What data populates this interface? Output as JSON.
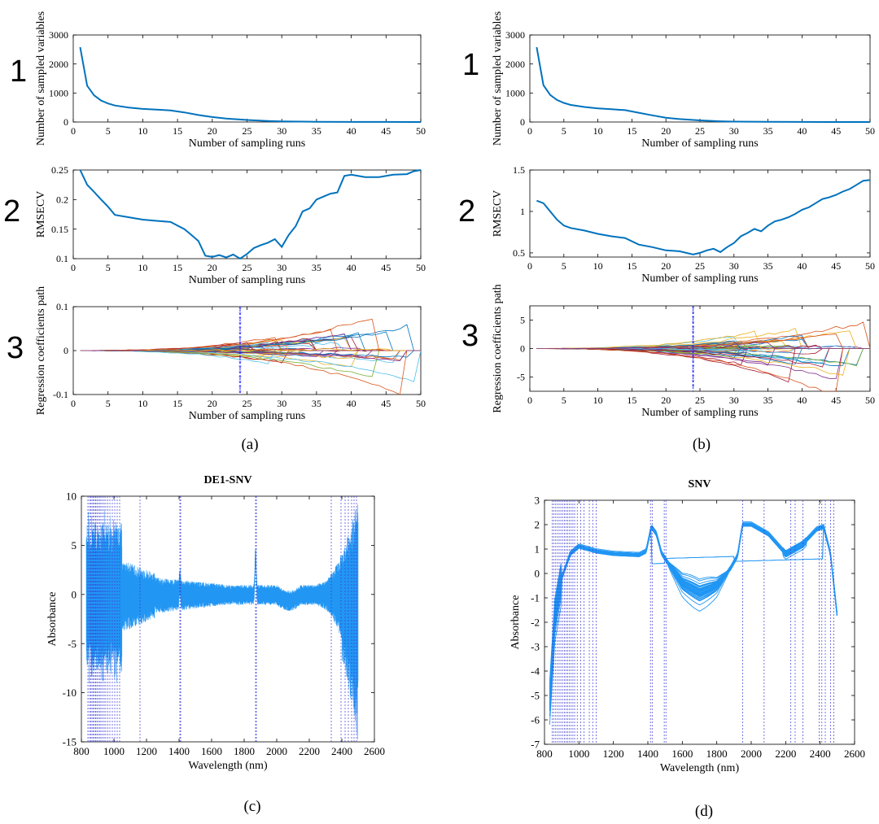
{
  "panel_labels": [
    "(a)",
    "(b)",
    "(c)",
    "(d)"
  ],
  "row_numbers": [
    "1",
    "2",
    "3"
  ],
  "colors": {
    "cars_line": "#0072BD",
    "spectra": "#2196F3",
    "selected_wavelength": "#3b3bd9",
    "star_marker": "#1a1aff",
    "axis": "#000000"
  },
  "coef_palette": [
    "#0072BD",
    "#D95319",
    "#EDB120",
    "#7E2F8E",
    "#77AC30",
    "#4DBEEE",
    "#A2142F"
  ],
  "chart_data": [
    {
      "id": "a1",
      "type": "line",
      "xlabel": "Number of sampling runs",
      "ylabel": "Number of sampled variables",
      "xlim": [
        0,
        50
      ],
      "ylim": [
        0,
        3000
      ],
      "xticks": [
        0,
        5,
        10,
        15,
        20,
        25,
        30,
        35,
        40,
        45,
        50
      ],
      "yticks": [
        0,
        1000,
        2000,
        3000
      ],
      "grid": false,
      "series": [
        {
          "x": [
            1,
            2,
            3,
            4,
            5,
            6,
            8,
            10,
            12,
            14,
            16,
            18,
            20,
            22,
            25,
            28,
            30,
            35,
            40,
            45,
            50
          ],
          "y": [
            2580,
            1250,
            920,
            740,
            640,
            570,
            500,
            450,
            425,
            400,
            330,
            240,
            170,
            120,
            70,
            35,
            20,
            8,
            3,
            2,
            1
          ]
        }
      ]
    },
    {
      "id": "a2",
      "type": "line",
      "xlabel": "Number of sampling runs",
      "ylabel": "RMSECV",
      "xlim": [
        0,
        50
      ],
      "ylim": [
        0.1,
        0.25
      ],
      "xticks": [
        0,
        5,
        10,
        15,
        20,
        25,
        30,
        35,
        40,
        45,
        50
      ],
      "yticks": [
        0.1,
        0.15,
        0.2,
        0.25
      ],
      "grid": false,
      "series": [
        {
          "x": [
            1,
            2,
            3,
            4,
            5,
            6,
            8,
            10,
            12,
            14,
            16,
            17,
            18,
            19,
            20,
            21,
            22,
            23,
            24,
            25,
            26,
            27,
            28,
            29,
            30,
            31,
            32,
            33,
            34,
            35,
            36,
            37,
            38,
            39,
            40,
            42,
            44,
            46,
            48,
            49,
            50
          ],
          "y": [
            0.25,
            0.225,
            0.213,
            0.2,
            0.188,
            0.174,
            0.17,
            0.166,
            0.164,
            0.162,
            0.15,
            0.14,
            0.13,
            0.105,
            0.103,
            0.106,
            0.102,
            0.107,
            0.1,
            0.108,
            0.118,
            0.123,
            0.127,
            0.133,
            0.12,
            0.14,
            0.155,
            0.18,
            0.185,
            0.2,
            0.205,
            0.21,
            0.212,
            0.24,
            0.242,
            0.238,
            0.238,
            0.242,
            0.243,
            0.248,
            0.25
          ]
        }
      ]
    },
    {
      "id": "a3",
      "type": "line",
      "xlabel": "Number of sampling runs",
      "ylabel": "Regression coefficients path",
      "xlim": [
        0,
        50
      ],
      "ylim": [
        -0.1,
        0.1
      ],
      "xticks": [
        0,
        5,
        10,
        15,
        20,
        25,
        30,
        35,
        40,
        45,
        50
      ],
      "yticks": [
        -0.1,
        0,
        0.1
      ],
      "grid": false,
      "marker_x": 24,
      "envelope": 0.085
    },
    {
      "id": "b1",
      "type": "line",
      "xlabel": "Number of sampling runs",
      "ylabel": "Number of sampled variables",
      "xlim": [
        0,
        50
      ],
      "ylim": [
        0,
        3000
      ],
      "xticks": [
        0,
        5,
        10,
        15,
        20,
        25,
        30,
        35,
        40,
        45,
        50
      ],
      "yticks": [
        0,
        1000,
        2000,
        3000
      ],
      "grid": false,
      "series": [
        {
          "x": [
            1,
            2,
            3,
            4,
            5,
            6,
            8,
            10,
            12,
            14,
            16,
            18,
            20,
            22,
            25,
            28,
            30,
            35,
            40,
            45,
            50
          ],
          "y": [
            2580,
            1270,
            930,
            760,
            660,
            590,
            520,
            470,
            440,
            410,
            320,
            230,
            150,
            100,
            55,
            25,
            15,
            5,
            2,
            1,
            1
          ]
        }
      ]
    },
    {
      "id": "b2",
      "type": "line",
      "xlabel": "Number of sampling runs",
      "ylabel": "RMSECV",
      "xlim": [
        0,
        50
      ],
      "ylim": [
        0.45,
        1.5
      ],
      "xticks": [
        0,
        5,
        10,
        15,
        20,
        25,
        30,
        35,
        40,
        45,
        50
      ],
      "yticks": [
        0.5,
        1,
        1.5
      ],
      "grid": false,
      "series": [
        {
          "x": [
            1,
            2,
            3,
            4,
            5,
            6,
            8,
            10,
            12,
            14,
            16,
            18,
            20,
            22,
            24,
            25,
            26,
            27,
            28,
            29,
            30,
            31,
            32,
            33,
            34,
            35,
            36,
            37,
            38,
            39,
            40,
            41,
            42,
            43,
            44,
            45,
            46,
            47,
            48,
            49,
            50
          ],
          "y": [
            1.13,
            1.1,
            1.0,
            0.9,
            0.83,
            0.8,
            0.77,
            0.73,
            0.7,
            0.68,
            0.6,
            0.57,
            0.53,
            0.52,
            0.48,
            0.5,
            0.53,
            0.55,
            0.51,
            0.57,
            0.62,
            0.7,
            0.74,
            0.79,
            0.76,
            0.83,
            0.88,
            0.9,
            0.93,
            0.97,
            1.02,
            1.05,
            1.1,
            1.15,
            1.17,
            1.2,
            1.24,
            1.27,
            1.32,
            1.37,
            1.38
          ]
        }
      ]
    },
    {
      "id": "b3",
      "type": "line",
      "xlabel": "Number of sampling runs",
      "ylabel": "Regression coefficients path",
      "xlim": [
        0,
        50
      ],
      "ylim": [
        -7.5,
        7.5
      ],
      "xticks": [
        0,
        5,
        10,
        15,
        20,
        25,
        30,
        35,
        40,
        45,
        50
      ],
      "yticks": [
        -5,
        0,
        5
      ],
      "grid": false,
      "marker_x": 24,
      "envelope": 6.5
    },
    {
      "id": "c",
      "type": "line",
      "title": "DE1-SNV",
      "xlabel": "Wavelength (nm)",
      "ylabel": "Absorbance",
      "xlim": [
        800,
        2600
      ],
      "ylim": [
        -15,
        10
      ],
      "xticks": [
        800,
        1000,
        1200,
        1400,
        1600,
        1800,
        2000,
        2200,
        2400,
        2600
      ],
      "yticks": [
        -15,
        -10,
        -5,
        0,
        5,
        10
      ],
      "grid": false,
      "selected_wavelengths": [
        840,
        850,
        858,
        865,
        872,
        880,
        888,
        895,
        903,
        912,
        920,
        930,
        940,
        950,
        962,
        975,
        990,
        1005,
        1020,
        1035,
        1160,
        1405,
        1410,
        1870,
        1875,
        2335,
        2395,
        2420,
        2440,
        2460,
        2475,
        2490
      ]
    },
    {
      "id": "d",
      "type": "line",
      "title": "SNV",
      "xlabel": "Wavelength (nm)",
      "ylabel": "Absorbance",
      "xlim": [
        800,
        2600
      ],
      "ylim": [
        -7,
        3
      ],
      "xticks": [
        800,
        1000,
        1200,
        1400,
        1600,
        1800,
        2000,
        2200,
        2400,
        2600
      ],
      "yticks": [
        -7,
        -6,
        -5,
        -4,
        -3,
        -2,
        -1,
        0,
        1,
        2,
        3
      ],
      "grid": false,
      "selected_wavelengths": [
        845,
        855,
        865,
        875,
        885,
        895,
        905,
        915,
        925,
        935,
        945,
        955,
        965,
        975,
        990,
        1010,
        1030,
        1060,
        1080,
        1100,
        1415,
        1425,
        1495,
        1505,
        1950,
        2075,
        2230,
        2255,
        2300,
        2395,
        2410,
        2430,
        2460,
        2480
      ]
    }
  ]
}
